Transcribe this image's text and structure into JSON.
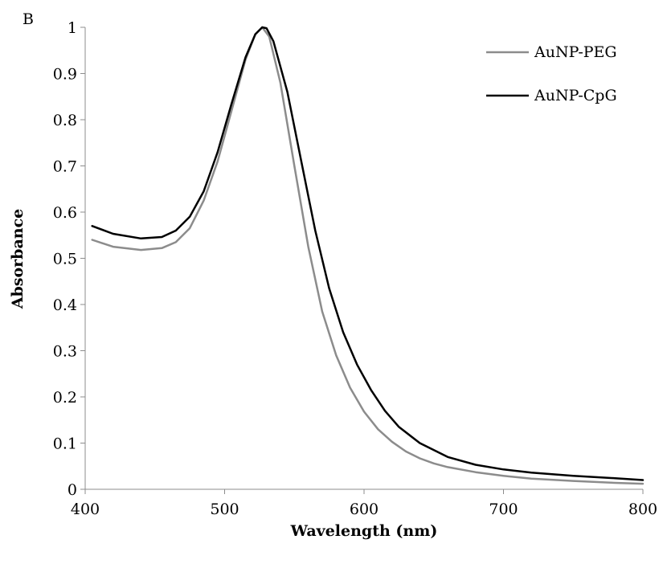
{
  "panel_label": "B",
  "chart_data": {
    "type": "line",
    "xlabel": "Wavelength (nm)",
    "ylabel": "Absorbance",
    "xlim": [
      400,
      800
    ],
    "ylim": [
      0,
      1
    ],
    "x_ticks": [
      400,
      500,
      600,
      700,
      800
    ],
    "y_ticks": [
      0,
      0.1,
      0.2,
      0.3,
      0.4,
      0.5,
      0.6,
      0.7,
      0.8,
      0.9,
      1
    ],
    "grid": false,
    "legend_position": "top-right",
    "series": [
      {
        "name": "AuNP-PEG",
        "color": "#8c8c8c",
        "x": [
          405,
          420,
          440,
          455,
          465,
          475,
          485,
          495,
          505,
          515,
          522,
          527,
          532,
          540,
          550,
          560,
          570,
          580,
          590,
          600,
          610,
          620,
          630,
          640,
          650,
          660,
          680,
          700,
          720,
          750,
          780,
          800
        ],
        "y": [
          0.54,
          0.525,
          0.518,
          0.522,
          0.535,
          0.565,
          0.625,
          0.71,
          0.82,
          0.93,
          0.985,
          1.0,
          0.98,
          0.88,
          0.7,
          0.525,
          0.385,
          0.29,
          0.22,
          0.168,
          0.13,
          0.103,
          0.082,
          0.067,
          0.056,
          0.048,
          0.037,
          0.029,
          0.023,
          0.018,
          0.014,
          0.012
        ]
      },
      {
        "name": "AuNP-CpG",
        "color": "#000000",
        "x": [
          405,
          420,
          440,
          455,
          465,
          475,
          485,
          495,
          505,
          515,
          522,
          527,
          530,
          535,
          545,
          555,
          565,
          575,
          585,
          595,
          605,
          615,
          625,
          640,
          660,
          680,
          700,
          720,
          750,
          780,
          800
        ],
        "y": [
          0.57,
          0.553,
          0.543,
          0.546,
          0.56,
          0.59,
          0.645,
          0.73,
          0.835,
          0.935,
          0.985,
          1.0,
          0.998,
          0.97,
          0.86,
          0.71,
          0.56,
          0.435,
          0.34,
          0.27,
          0.215,
          0.17,
          0.135,
          0.1,
          0.07,
          0.053,
          0.043,
          0.036,
          0.029,
          0.024,
          0.02
        ]
      }
    ]
  }
}
